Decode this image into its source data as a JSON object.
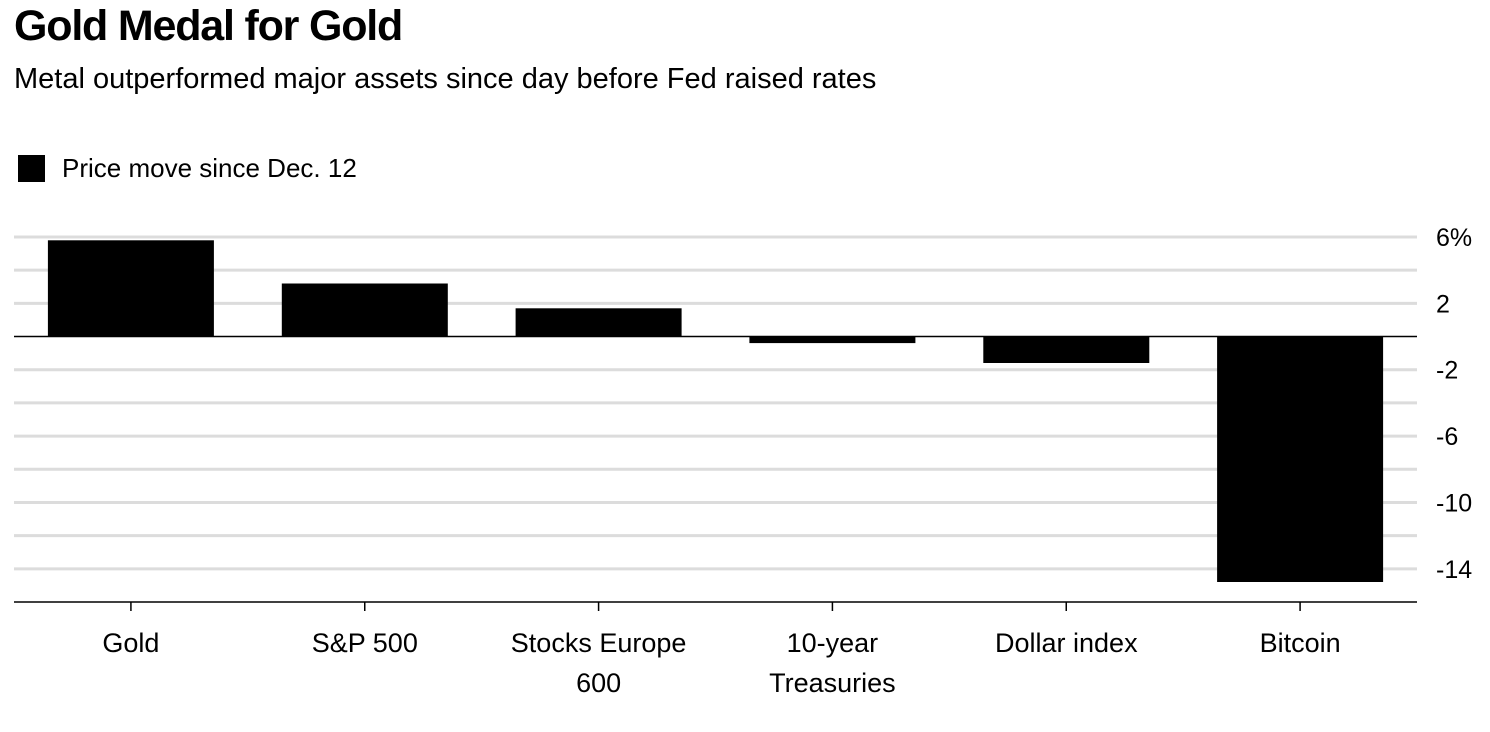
{
  "chart_data": {
    "type": "bar",
    "title": "Gold Medal for Gold",
    "subtitle": "Metal outperformed major assets since day before Fed raised rates",
    "xlabel": "",
    "ylabel": "",
    "legend_position": "top-left",
    "grid": true,
    "ylim": [
      -16,
      6
    ],
    "yticks": [
      6,
      2,
      -2,
      -6,
      -10,
      -14
    ],
    "ytick_labels": [
      "6%",
      "2",
      "-2",
      "-6",
      "-10",
      "-14"
    ],
    "categories": [
      [
        "Gold"
      ],
      [
        "S&P 500"
      ],
      [
        "Stocks Europe",
        "600"
      ],
      [
        "10-year",
        "Treasuries"
      ],
      [
        "Dollar index"
      ],
      [
        "Bitcoin"
      ]
    ],
    "series": [
      {
        "name": "Price move since Dec. 12",
        "color": "#000000",
        "values": [
          5.8,
          3.2,
          1.7,
          -0.4,
          -1.6,
          -14.8
        ]
      }
    ]
  }
}
